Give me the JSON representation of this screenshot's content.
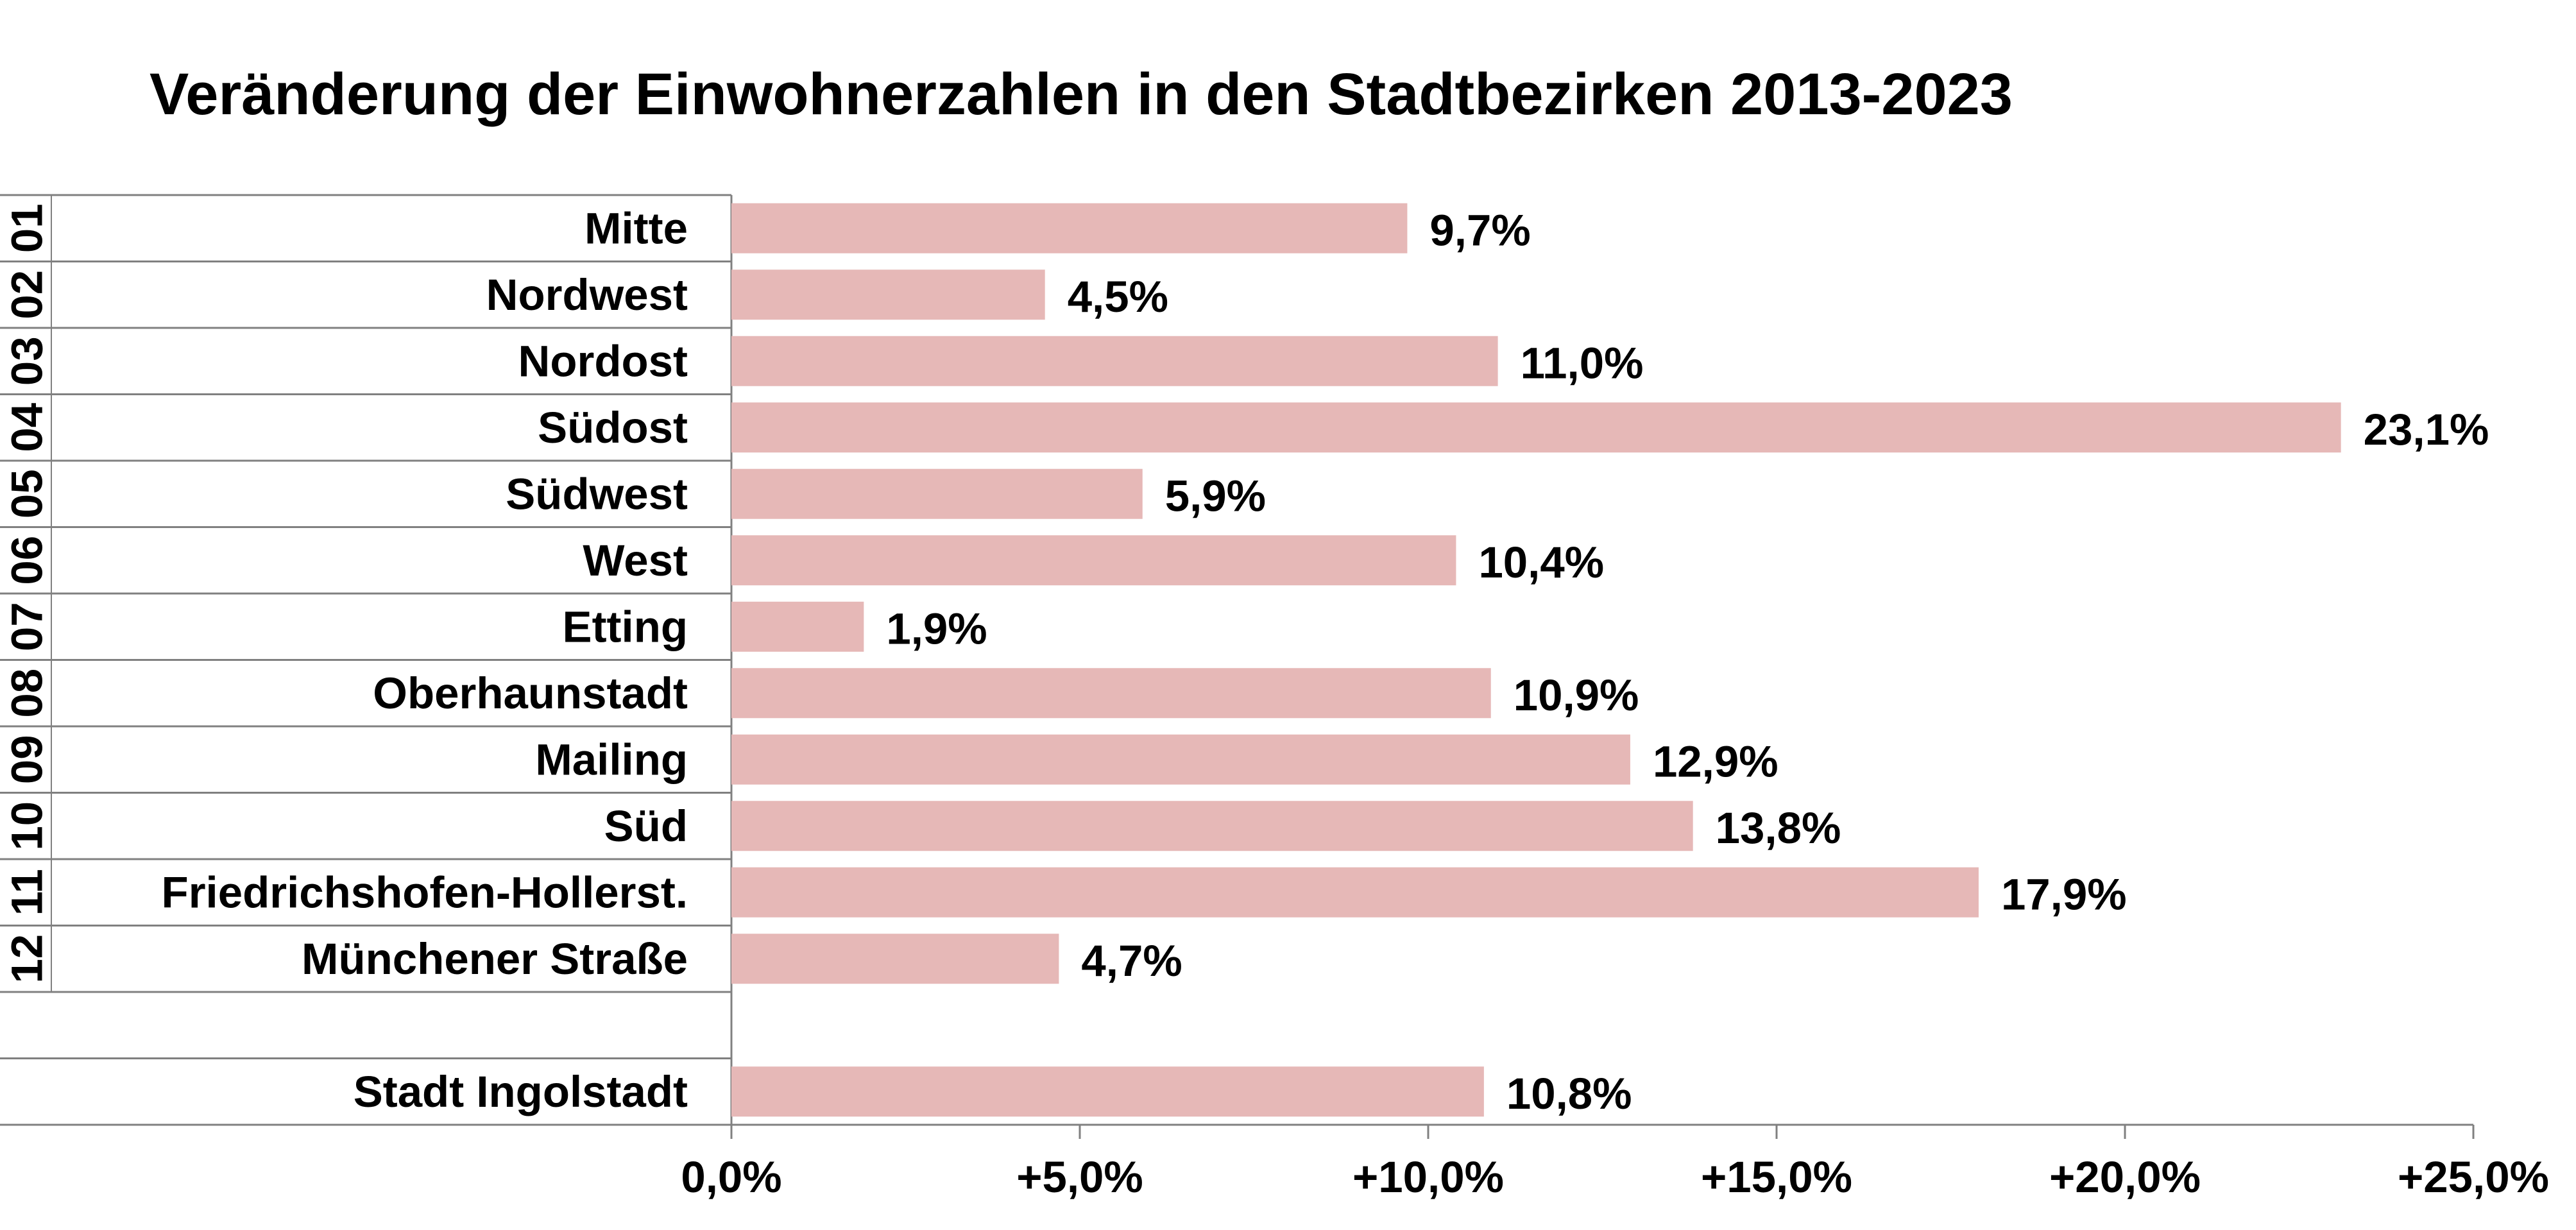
{
  "chart_data": {
    "type": "bar",
    "orientation": "horizontal",
    "title": "Veränderung der Einwohnerzahlen in den Stadtbezirken 2013-2023",
    "xlabel": "",
    "ylabel": "",
    "xlim": [
      0,
      25
    ],
    "grid": false,
    "legend": "none",
    "bar_color": "#e6b8b7",
    "x_ticks": [
      "0,0%",
      "+5,0%",
      "+10,0%",
      "+15,0%",
      "+20,0%",
      "+25,0%"
    ],
    "categories": [
      {
        "code": "01",
        "name": "Mitte",
        "value": 9.7,
        "label": "9,7%"
      },
      {
        "code": "02",
        "name": "Nordwest",
        "value": 4.5,
        "label": "4,5%"
      },
      {
        "code": "03",
        "name": "Nordost",
        "value": 11.0,
        "label": "11,0%"
      },
      {
        "code": "04",
        "name": "Südost",
        "value": 23.1,
        "label": "23,1%"
      },
      {
        "code": "05",
        "name": "Südwest",
        "value": 5.9,
        "label": "5,9%"
      },
      {
        "code": "06",
        "name": "West",
        "value": 10.4,
        "label": "10,4%"
      },
      {
        "code": "07",
        "name": "Etting",
        "value": 1.9,
        "label": "1,9%"
      },
      {
        "code": "08",
        "name": "Oberhaunstadt",
        "value": 10.9,
        "label": "10,9%"
      },
      {
        "code": "09",
        "name": "Mailing",
        "value": 12.9,
        "label": "12,9%"
      },
      {
        "code": "10",
        "name": "Süd",
        "value": 13.8,
        "label": "13,8%"
      },
      {
        "code": "11",
        "name": "Friedrichshofen-Hollerst.",
        "value": 17.9,
        "label": "17,9%"
      },
      {
        "code": "12",
        "name": "Münchener Straße",
        "value": 4.7,
        "label": "4,7%"
      },
      {
        "code": "",
        "name": "",
        "value": null,
        "label": ""
      },
      {
        "code": "",
        "name": "Stadt Ingolstadt",
        "value": 10.8,
        "label": "10,8%"
      }
    ]
  }
}
